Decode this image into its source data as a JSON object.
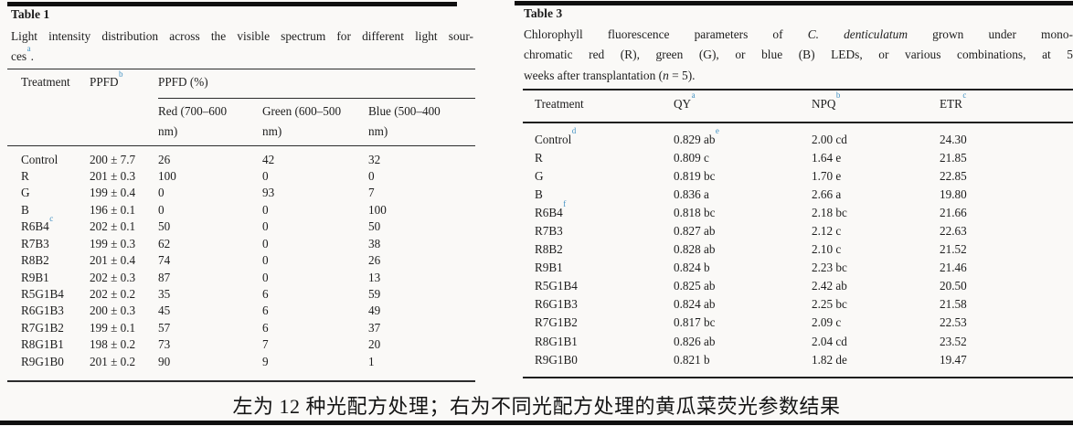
{
  "colors": {
    "accent_footnote_blue": "#4090c2",
    "background": "#faf9f7",
    "text": "#1d1d1d"
  },
  "table1": {
    "title": "Table 1",
    "caption_lines": [
      [
        {
          "t": "Light intensity distribution across the visible spectrum for different light sour-"
        }
      ],
      [
        {
          "t": "ces^a."
        }
      ]
    ],
    "headers": {
      "treatment": "Treatment",
      "ppfd": "PPFD^b",
      "ppfd_pct": "PPFD (%)"
    },
    "sub_headers": [
      "Red (700–600\nnm)",
      "Green (600–500\nnm)",
      "Blue (500–400\nnm)"
    ],
    "rows": [
      [
        "Control",
        "200 ± 7.7",
        "26",
        "42",
        "32"
      ],
      [
        "R",
        "201 ± 0.3",
        "100",
        "0",
        "0"
      ],
      [
        "G",
        "199 ± 0.4",
        "0",
        "93",
        "7"
      ],
      [
        "B",
        "196 ± 0.1",
        "0",
        "0",
        "100"
      ],
      [
        "R6B4^c",
        "202 ± 0.1",
        "50",
        "0",
        "50"
      ],
      [
        "R7B3",
        "199 ± 0.3",
        "62",
        "0",
        "38"
      ],
      [
        "R8B2",
        "201 ± 0.4",
        "74",
        "0",
        "26"
      ],
      [
        "R9B1",
        "202 ± 0.3",
        "87",
        "0",
        "13"
      ],
      [
        "R5G1B4",
        "202 ± 0.2",
        "35",
        "6",
        "59"
      ],
      [
        "R6G1B3",
        "200 ± 0.3",
        "45",
        "6",
        "49"
      ],
      [
        "R7G1B2",
        "199 ± 0.1",
        "57",
        "6",
        "37"
      ],
      [
        "R8G1B1",
        "198 ± 0.2",
        "73",
        "7",
        "20"
      ],
      [
        "R9G1B0",
        "201 ± 0.2",
        "90",
        "9",
        "1"
      ]
    ]
  },
  "table3": {
    "title": "Table 3",
    "caption_lines": [
      [
        {
          "t": "Chlorophyll fluorescence parameters of "
        },
        {
          "t": "C. denticulatum",
          "i": true
        },
        {
          "t": " grown under mono-"
        }
      ],
      [
        {
          "t": "chromatic red (R), green (G), or blue (B) LEDs, or various combinations, at 5"
        }
      ],
      [
        {
          "t": "weeks after transplantation ("
        },
        {
          "t": "n",
          "i": true
        },
        {
          "t": " = 5)."
        }
      ]
    ],
    "headers": [
      "Treatment",
      "QY^a",
      "NPQ^b",
      "ETR^c"
    ],
    "rows": [
      [
        "Control^d",
        "0.829 ab^e",
        "2.00 cd",
        "24.30"
      ],
      [
        "R",
        "0.809 c",
        "1.64 e",
        "21.85"
      ],
      [
        "G",
        "0.819 bc",
        "1.70 e",
        "22.85"
      ],
      [
        "B",
        "0.836 a",
        "2.66 a",
        "19.80"
      ],
      [
        "R6B4^f",
        "0.818 bc",
        "2.18 bc",
        "21.66"
      ],
      [
        "R7B3",
        "0.827 ab",
        "2.12 c",
        "22.63"
      ],
      [
        "R8B2",
        "0.828 ab",
        "2.10 c",
        "21.52"
      ],
      [
        "R9B1",
        "0.824 b",
        "2.23 bc",
        "21.46"
      ],
      [
        "R5G1B4",
        "0.825 ab",
        "2.42 ab",
        "20.50"
      ],
      [
        "R6G1B3",
        "0.824 ab",
        "2.25 bc",
        "21.58"
      ],
      [
        "R7G1B2",
        "0.817 bc",
        "2.09 c",
        "22.53"
      ],
      [
        "R8G1B1",
        "0.826 ab",
        "2.04 cd",
        "23.52"
      ],
      [
        "R9G1B0",
        "0.821 b",
        "1.82 de",
        "19.47"
      ]
    ]
  },
  "figure_caption": "左为 12 种光配方处理；右为不同光配方处理的黄瓜菜荧光参数结果"
}
